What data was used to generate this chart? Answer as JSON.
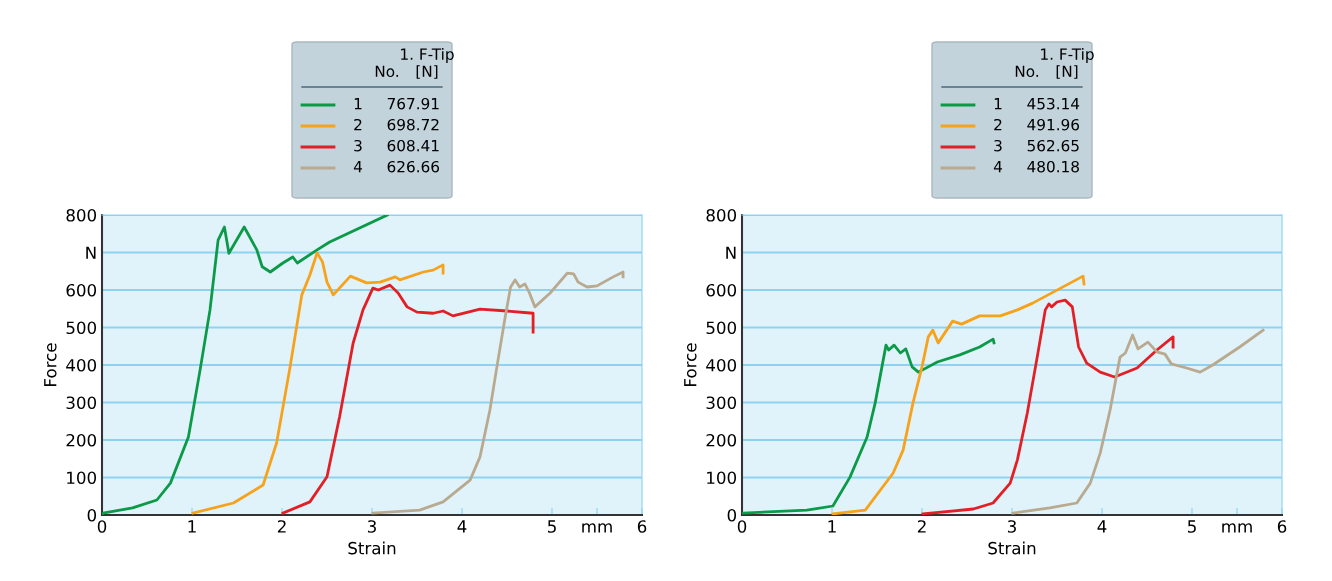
{
  "chart_data": [
    {
      "type": "line",
      "xlabel": "Strain",
      "ylabel": "Force",
      "xlim": [
        0,
        6
      ],
      "ylim": [
        0,
        800
      ],
      "xticks": [
        0,
        1,
        2,
        3,
        4,
        5,
        {
          "value": 5.5,
          "label": "mm"
        },
        6
      ],
      "yticks": [
        0,
        100,
        200,
        300,
        400,
        500,
        600,
        {
          "value": 700,
          "label": "N"
        },
        800
      ],
      "grid": "y",
      "legend": "top",
      "legend_title": "No.",
      "marker": "none",
      "line_style": "solid",
      "annotations": [
        "1. F-Tip\n[N]",
        "767.91",
        "698.72",
        "608.41",
        "626.66"
      ],
      "series": [
        {
          "name": "1",
          "color": "#0a9a48",
          "x": [
            0,
            0.01,
            0.34,
            0.61,
            0.76,
            0.96,
            1.09,
            1.2,
            1.29,
            1.36,
            1.41,
            1.58,
            1.72,
            1.78,
            1.87,
            2.01,
            2.12,
            2.17,
            2.39,
            2.53,
            3.17
          ],
          "values": [
            0,
            5,
            19,
            40,
            85,
            208,
            387,
            547,
            733,
            768,
            698,
            768,
            707,
            662,
            648,
            672,
            688,
            672,
            707,
            728,
            800
          ]
        },
        {
          "name": "2",
          "color": "#f7a21b",
          "x": [
            1.01,
            1.46,
            1.79,
            1.94,
            2.09,
            2.22,
            2.31,
            2.39,
            2.45,
            2.5,
            2.57,
            2.76,
            2.94,
            3.09,
            3.26,
            3.31,
            3.57,
            3.68,
            3.79,
            3.79
          ],
          "values": [
            5,
            32,
            80,
            192,
            395,
            587,
            640,
            699,
            675,
            621,
            587,
            637,
            619,
            621,
            635,
            627,
            648,
            653,
            667,
            645
          ]
        },
        {
          "name": "3",
          "color": "#e31e24",
          "x": [
            2.01,
            2.31,
            2.5,
            2.64,
            2.79,
            2.9,
            3.01,
            3.07,
            3.2,
            3.29,
            3.39,
            3.5,
            3.68,
            3.79,
            3.9,
            4.2,
            4.5,
            4.79,
            4.79
          ],
          "values": [
            5,
            35,
            102,
            262,
            458,
            547,
            605,
            600,
            613,
            592,
            555,
            541,
            538,
            544,
            531,
            549,
            544,
            538,
            488
          ]
        },
        {
          "name": "4",
          "color": "#b9a98f",
          "x": [
            3.01,
            3.53,
            3.79,
            4.09,
            4.2,
            4.31,
            4.4,
            4.48,
            4.54,
            4.59,
            4.64,
            4.7,
            4.75,
            4.81,
            4.98,
            5.17,
            5.24,
            5.29,
            5.39,
            5.5,
            5.68,
            5.79,
            5.79
          ],
          "values": [
            5,
            13,
            35,
            93,
            155,
            280,
            413,
            528,
            608,
            627,
            608,
            616,
            592,
            555,
            592,
            645,
            643,
            621,
            608,
            611,
            635,
            648,
            635
          ]
        }
      ]
    },
    {
      "type": "line",
      "xlabel": "Strain",
      "ylabel": "Force",
      "xlim": [
        0,
        6
      ],
      "ylim": [
        0,
        800
      ],
      "xticks": [
        0,
        1,
        2,
        3,
        4,
        5,
        {
          "value": 5.5,
          "label": "mm"
        },
        6
      ],
      "yticks": [
        0,
        100,
        200,
        300,
        400,
        500,
        600,
        {
          "value": 700,
          "label": "N"
        },
        800
      ],
      "grid": "y",
      "legend": "top",
      "legend_title": "No.",
      "marker": "none",
      "line_style": "solid",
      "annotations": [
        "1. F-Tip\n[N]",
        "453.14",
        "491.96",
        "562.65",
        "480.18"
      ],
      "series": [
        {
          "name": "1",
          "color": "#0a9a48",
          "x": [
            0.01,
            0.72,
            1.01,
            1.2,
            1.39,
            1.48,
            1.6,
            1.63,
            1.69,
            1.76,
            1.82,
            1.89,
            1.96,
            2.17,
            2.42,
            2.64,
            2.79,
            2.8
          ],
          "values": [
            5,
            13,
            24,
            101,
            208,
            299,
            453,
            440,
            453,
            432,
            443,
            395,
            381,
            408,
            427,
            448,
            469,
            459
          ]
        },
        {
          "name": "2",
          "color": "#f7a21b",
          "x": [
            1.01,
            1.37,
            1.68,
            1.79,
            1.9,
            2.0,
            2.07,
            2.12,
            2.18,
            2.34,
            2.44,
            2.64,
            2.87,
            3.06,
            3.23,
            3.79,
            3.8
          ],
          "values": [
            3,
            13,
            112,
            173,
            299,
            395,
            475,
            493,
            459,
            517,
            509,
            531,
            531,
            547,
            565,
            637,
            616
          ]
        },
        {
          "name": "3",
          "color": "#e31e24",
          "x": [
            2.01,
            2.57,
            2.79,
            2.98,
            3.06,
            3.17,
            3.28,
            3.37,
            3.41,
            3.44,
            3.5,
            3.59,
            3.67,
            3.74,
            3.83,
            3.98,
            4.14,
            4.39,
            4.61,
            4.79,
            4.79
          ],
          "values": [
            3,
            16,
            32,
            85,
            147,
            272,
            421,
            547,
            563,
            555,
            568,
            573,
            555,
            448,
            405,
            381,
            368,
            392,
            440,
            475,
            448
          ]
        },
        {
          "name": "4",
          "color": "#b9a98f",
          "x": [
            3.01,
            3.42,
            3.72,
            3.87,
            3.98,
            4.09,
            4.2,
            4.26,
            4.34,
            4.4,
            4.51,
            4.61,
            4.7,
            4.77,
            4.94,
            5.09,
            5.23,
            5.53,
            5.79
          ],
          "values": [
            5,
            19,
            32,
            85,
            165,
            280,
            421,
            432,
            480,
            443,
            461,
            435,
            429,
            403,
            392,
            381,
            400,
            448,
            493
          ]
        }
      ]
    }
  ]
}
